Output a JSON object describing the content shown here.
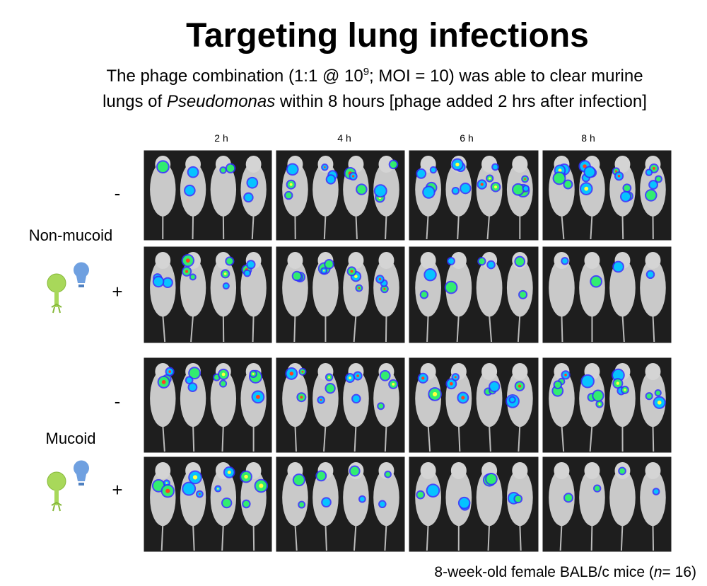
{
  "title": "Targeting lung infections",
  "subtitle": {
    "line1": [
      "The phage combination (1:1 @ 10",
      "9",
      "; MOI = 10) was able to clear murine"
    ],
    "line2": [
      "lungs of ",
      "Pseudomonas",
      " within 8 hours [phage added 2 hrs after infection]"
    ]
  },
  "timepoints": [
    "2 h",
    "4 h",
    "6 h",
    "8 h"
  ],
  "groups": [
    {
      "label": "Non-mucoid",
      "rows": [
        "-",
        "+"
      ]
    },
    {
      "label": "Mucoid",
      "rows": [
        "-",
        "+"
      ]
    }
  ],
  "footnote": [
    "8-week-old female BALB/c mice (",
    "n",
    "= 16)"
  ]
}
